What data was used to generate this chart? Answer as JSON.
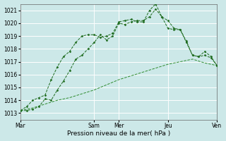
{
  "xlabel": "Pression niveau de la mer( hPa )",
  "ylim": [
    1012.5,
    1021.5
  ],
  "yticks": [
    1013,
    1014,
    1015,
    1016,
    1017,
    1018,
    1019,
    1020,
    1021
  ],
  "bg_color": "#cce8e8",
  "grid_color": "#ffffff",
  "line_color1": "#1e6b1e",
  "line_color2": "#1e6b1e",
  "line_color3": "#2e8b2e",
  "xtick_labels": [
    "Mar",
    "Sam",
    "Mer",
    "Jeu",
    "Ven"
  ],
  "xtick_positions": [
    0,
    36,
    48,
    72,
    96
  ],
  "vline_positions": [
    0,
    36,
    48,
    72,
    96
  ],
  "series1_x": [
    0,
    3,
    6,
    9,
    12,
    15,
    18,
    21,
    24,
    27,
    30,
    33,
    36,
    39,
    42,
    45,
    48,
    51,
    54,
    57,
    60,
    63,
    66,
    69,
    72,
    75,
    78,
    81,
    84,
    87,
    90,
    93,
    96
  ],
  "series1_y": [
    1013.2,
    1013.2,
    1013.3,
    1013.5,
    1014.1,
    1014.0,
    1014.8,
    1015.5,
    1016.3,
    1017.2,
    1017.5,
    1018.0,
    1018.5,
    1019.1,
    1018.7,
    1019.0,
    1020.0,
    1019.9,
    1020.1,
    1020.2,
    1020.2,
    1020.5,
    1021.1,
    1020.5,
    1020.2,
    1019.6,
    1019.5,
    1018.5,
    1017.5,
    1017.4,
    1017.8,
    1017.4,
    1016.7
  ],
  "series2_x": [
    0,
    3,
    6,
    9,
    12,
    15,
    18,
    21,
    24,
    27,
    30,
    33,
    36,
    39,
    42,
    45,
    48,
    51,
    54,
    57,
    60,
    63,
    66,
    69,
    72,
    75,
    78,
    81,
    84,
    87,
    90,
    93,
    96
  ],
  "series2_y": [
    1013.2,
    1013.5,
    1014.0,
    1014.2,
    1014.4,
    1015.6,
    1016.6,
    1017.4,
    1017.8,
    1018.5,
    1019.0,
    1019.1,
    1019.1,
    1018.9,
    1019.0,
    1019.2,
    1020.1,
    1020.2,
    1020.3,
    1020.1,
    1020.1,
    1021.0,
    1021.5,
    1020.5,
    1019.6,
    1019.5,
    1019.5,
    1018.6,
    1017.5,
    1017.4,
    1017.5,
    1017.3,
    1016.7
  ],
  "series3_x": [
    0,
    6,
    12,
    18,
    24,
    30,
    36,
    42,
    48,
    54,
    60,
    66,
    72,
    78,
    84,
    90,
    96
  ],
  "series3_y": [
    1013.2,
    1013.4,
    1013.7,
    1014.0,
    1014.2,
    1014.5,
    1014.8,
    1015.2,
    1015.6,
    1015.9,
    1016.2,
    1016.5,
    1016.8,
    1017.0,
    1017.2,
    1016.9,
    1016.7
  ]
}
